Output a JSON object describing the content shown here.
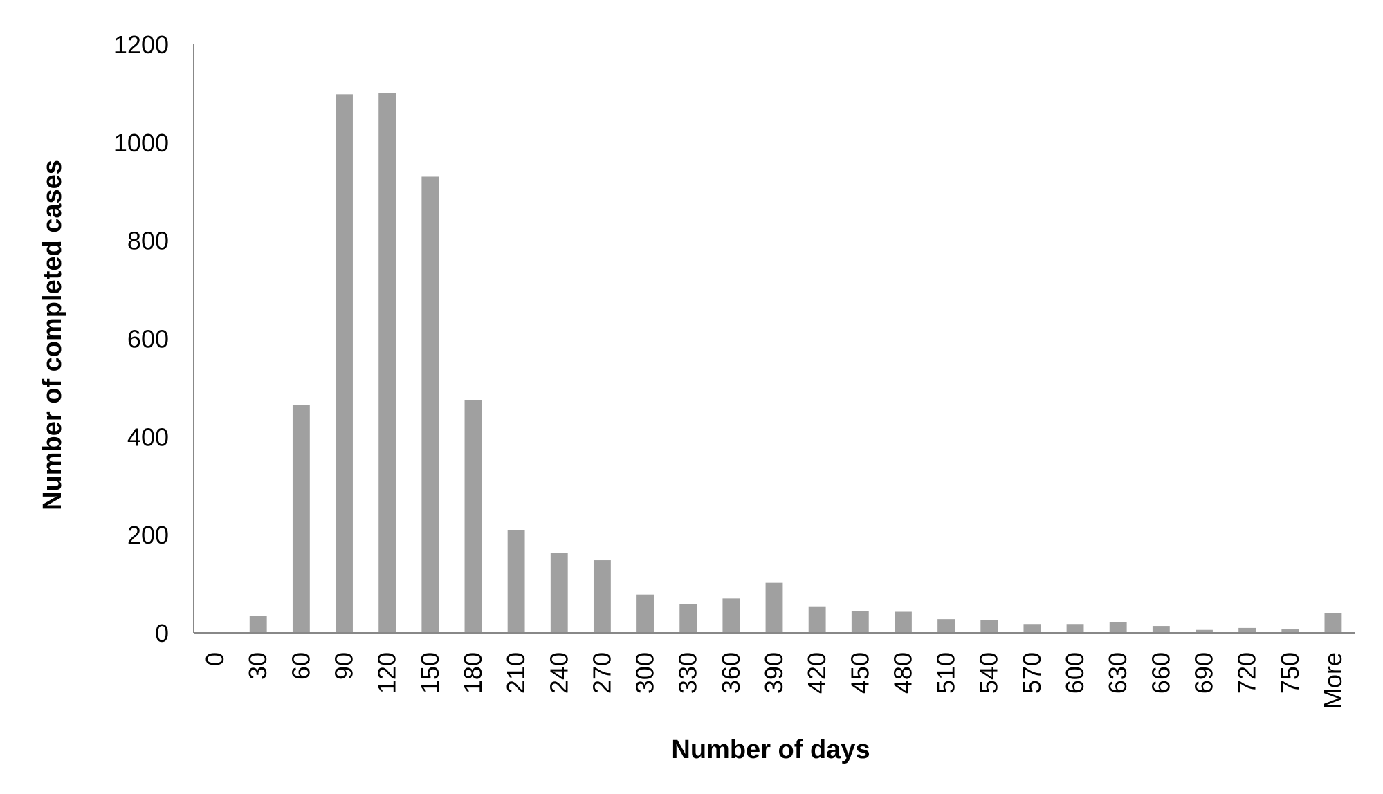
{
  "chart_data": {
    "type": "bar",
    "title": "",
    "xlabel": "Number of days",
    "ylabel": "Number of completed cases",
    "categories": [
      "0",
      "30",
      "60",
      "90",
      "120",
      "150",
      "180",
      "210",
      "240",
      "270",
      "300",
      "330",
      "360",
      "390",
      "420",
      "450",
      "480",
      "510",
      "540",
      "570",
      "600",
      "630",
      "660",
      "690",
      "720",
      "750",
      "More"
    ],
    "values": [
      0,
      35,
      465,
      1098,
      1100,
      930,
      475,
      210,
      163,
      148,
      78,
      58,
      70,
      102,
      54,
      44,
      43,
      28,
      26,
      18,
      18,
      22,
      14,
      6,
      10,
      7,
      40
    ],
    "ylim": [
      0,
      1200
    ],
    "yticks": [
      0,
      200,
      400,
      600,
      800,
      1000,
      1200
    ],
    "grid": false,
    "legend": "none",
    "bar_color": "#a0a0a0",
    "axis_color": "#888888"
  }
}
